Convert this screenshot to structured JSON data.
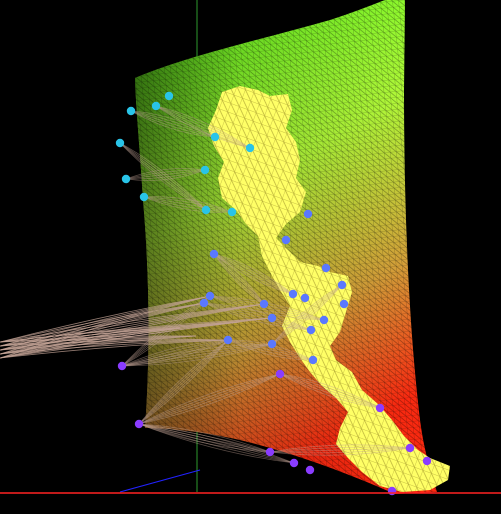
{
  "scene": {
    "description_visible_text": "",
    "colors": {
      "background": "#000000",
      "mesh_top": "#5cff1a",
      "mesh_mid": "#c8ff4a",
      "mesh_bottom": "#ff2a10",
      "blob_fill": "#ffff55",
      "node_cyan": "#29c4e8",
      "node_blue": "#5a78ff",
      "node_purple": "#8a3cff",
      "strand": "#b89a8a",
      "axis_green": "#2e9a2e",
      "axis_red": "#ff2222",
      "axis_blue": "#2222ff"
    }
  }
}
